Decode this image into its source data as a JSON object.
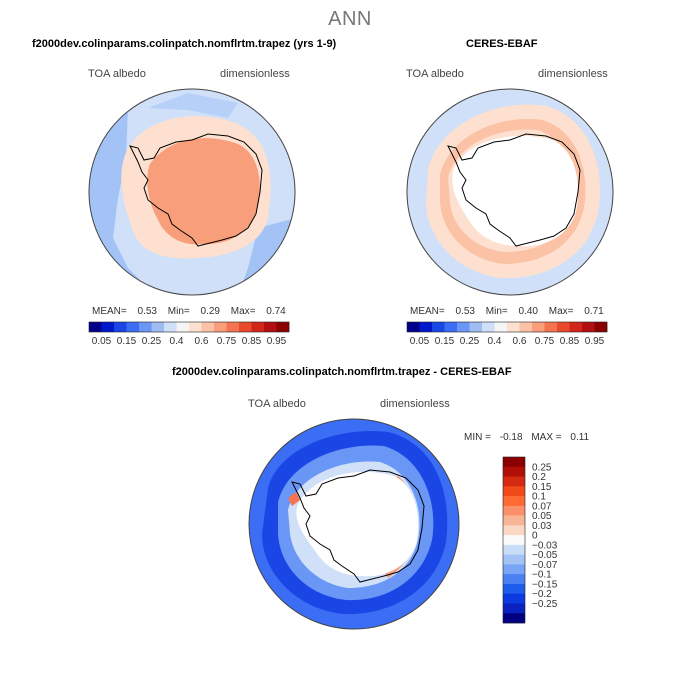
{
  "season": "ANN",
  "panels": [
    {
      "title": "f2000dev.colinparams.colinpatch.nomflrtm.trapez (yrs 1-9)",
      "variable": "TOA albedo",
      "units": "dimensionless",
      "mean_label": "MEAN=",
      "mean": "0.53",
      "min_label": "Min=",
      "min": "0.29",
      "max_label": "Max=",
      "max": "0.74"
    },
    {
      "title": "CERES-EBAF",
      "variable": "TOA albedo",
      "units": "dimensionless",
      "mean_label": "MEAN=",
      "mean": "0.53",
      "min_label": "Min=",
      "min": "0.40",
      "max_label": "Max=",
      "max": "0.71"
    }
  ],
  "difference": {
    "title": "f2000dev.colinparams.colinpatch.nomflrtm.trapez - CERES-EBAF",
    "variable": "TOA albedo",
    "units": "dimensionless",
    "min_label": "MIN =",
    "min": "-0.18",
    "max_label": "MAX =",
    "max": "0.11"
  },
  "abs_colorbar": {
    "ticks": [
      "0.05",
      "0.15",
      "0.25",
      "0.4",
      "0.6",
      "0.75",
      "0.85",
      "0.95"
    ],
    "colors": [
      "#00008b",
      "#0018cc",
      "#1a46e6",
      "#3c6ef5",
      "#6a96f5",
      "#9ebbf2",
      "#cfe0f8",
      "#f5f5f5",
      "#fde0d0",
      "#fcc2a6",
      "#f99e7a",
      "#f47350",
      "#e94a2c",
      "#d1261a",
      "#b21010",
      "#8b0000"
    ]
  },
  "diff_colorbar": {
    "ticks": [
      "0.25",
      "0.2",
      "0.15",
      "0.1",
      "0.07",
      "0.05",
      "0.03",
      "0",
      "−0.03",
      "−0.05",
      "−0.07",
      "−0.1",
      "−0.15",
      "−0.2",
      "−0.25"
    ],
    "colors": [
      "#8b0000",
      "#b01008",
      "#d42a10",
      "#f04a18",
      "#ff6a32",
      "#fb906a",
      "#f7b596",
      "#fad8c4",
      "#fbfbfb",
      "#c9dcf8",
      "#a3c3f6",
      "#7aa4f5",
      "#4a80f2",
      "#1e5cec",
      "#0a3ae0",
      "#0a22c0",
      "#000080"
    ]
  },
  "chart_data": [
    {
      "type": "heatmap",
      "title": "f2000dev.colinparams.colinpatch.nomflrtm.trapez (yrs 1-9)",
      "field": "TOA albedo",
      "projection": "south polar stereographic",
      "stats": {
        "mean": 0.53,
        "min": 0.29,
        "max": 0.74
      },
      "contour_levels": [
        0.05,
        0.15,
        0.25,
        0.4,
        0.6,
        0.75,
        0.85,
        0.95
      ]
    },
    {
      "type": "heatmap",
      "title": "CERES-EBAF",
      "field": "TOA albedo",
      "projection": "south polar stereographic",
      "stats": {
        "mean": 0.53,
        "min": 0.4,
        "max": 0.71
      },
      "contour_levels": [
        0.05,
        0.15,
        0.25,
        0.4,
        0.6,
        0.75,
        0.85,
        0.95
      ]
    },
    {
      "type": "heatmap",
      "title": "f2000dev.colinparams.colinpatch.nomflrtm.trapez - CERES-EBAF",
      "field": "TOA albedo difference",
      "projection": "south polar stereographic",
      "stats": {
        "min": -0.18,
        "max": 0.11
      },
      "contour_levels": [
        -0.25,
        -0.2,
        -0.15,
        -0.1,
        -0.07,
        -0.05,
        -0.03,
        0,
        0.03,
        0.05,
        0.07,
        0.1,
        0.15,
        0.2,
        0.25
      ]
    }
  ]
}
